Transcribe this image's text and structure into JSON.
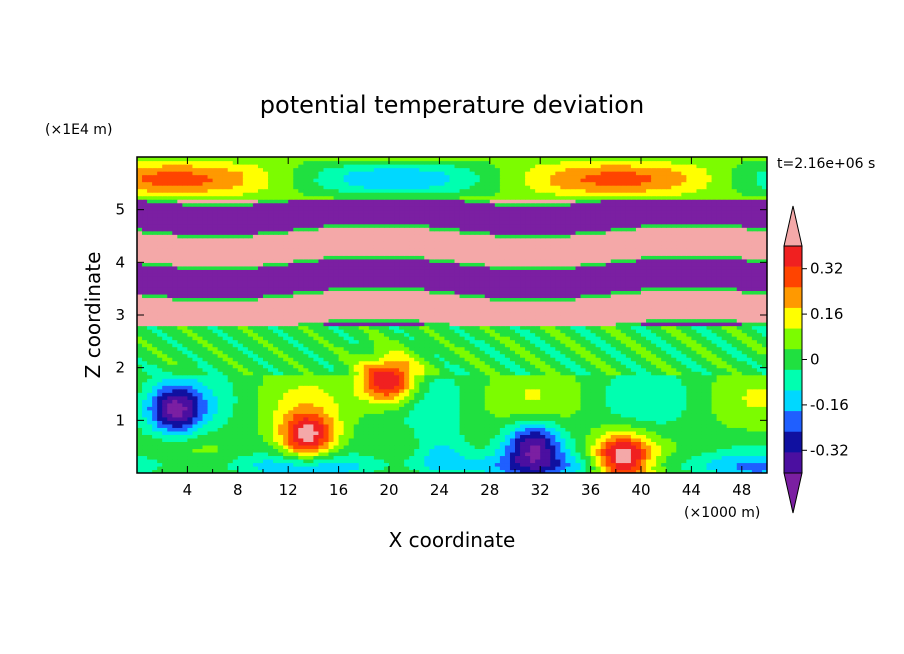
{
  "chart_data": {
    "type": "heatmap",
    "title": "potential temperature deviation",
    "xlabel": "X coordinate",
    "ylabel": "Z coordinate",
    "x_unit": "(×1000 m)",
    "y_unit": "(×1E4 m)",
    "time_label": "t=2.16e+06 s",
    "xlim": [
      0,
      50
    ],
    "ylim": [
      0,
      6
    ],
    "x_ticks": [
      4,
      8,
      12,
      16,
      20,
      24,
      28,
      32,
      36,
      40,
      44,
      48
    ],
    "y_ticks": [
      1,
      2,
      3,
      4,
      5
    ],
    "colorbar": {
      "levels": [
        -0.48,
        -0.4,
        -0.32,
        -0.24,
        -0.16,
        -0.08,
        0,
        0.08,
        0.16,
        0.24,
        0.32,
        0.4,
        0.48
      ],
      "colors": [
        "#7b1fa2",
        "#4b0fa0",
        "#1010a0",
        "#1f5fff",
        "#00d8ff",
        "#00ffb0",
        "#20e040",
        "#7cfc00",
        "#ffff00",
        "#ff9900",
        "#ff4400",
        "#f02020",
        "#f4a8a8"
      ],
      "tick_labels": [
        "0.32",
        "0.16",
        "0",
        "-0.16",
        "-0.32"
      ],
      "tick_values": [
        0.32,
        0.16,
        0,
        -0.16,
        -0.32
      ],
      "extend": "both"
    },
    "grid": false,
    "field_layers": [
      {
        "z_range": [
          0,
          1.9
        ],
        "description": "lower layer with mixed structures",
        "dominant": 0.0
      },
      {
        "z_range": [
          1.9,
          2.8
        ],
        "description": "green band",
        "dominant": 0.05
      },
      {
        "z_range": [
          2.8,
          5.2
        ],
        "description": "alternating pink and purple bands",
        "dominant": 0.45
      },
      {
        "z_range": [
          5.2,
          6.0
        ],
        "description": "top band",
        "dominant": 0.1
      }
    ],
    "features": [
      {
        "type": "warm",
        "x": 13.5,
        "z": 0.7,
        "peak": 0.48
      },
      {
        "type": "warm",
        "x": 38.5,
        "z": 0.3,
        "peak": 0.48
      },
      {
        "type": "cold",
        "x": 31.5,
        "z": 0.55,
        "peak": -0.4
      },
      {
        "type": "cold",
        "x": 3,
        "z": 1.2,
        "peak": -0.4
      },
      {
        "type": "cold",
        "x": 24,
        "z": 0.35,
        "peak": -0.2
      },
      {
        "type": "warm",
        "x": 20,
        "z": 1.75,
        "peak": 0.48
      }
    ]
  }
}
